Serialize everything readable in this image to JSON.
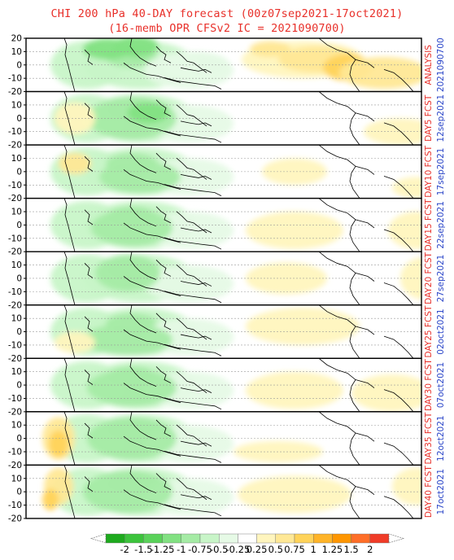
{
  "title": {
    "line1": "CHI 200 hPa 40-DAY forecast (00z07sep2021-17oct2021)",
    "line2": "(16-memb OPR CFSv2 IC = 2021090700)"
  },
  "colors": {
    "title": "#e8302a",
    "panel_label_red": "#e8302a",
    "panel_label_blue": "#2a45c8",
    "coast": "#000000",
    "grid": "#9a9a9a"
  },
  "chart_data": {
    "type": "heatmap",
    "variable": "CHI 200 hPa",
    "yaxis_ticks": [
      "20",
      "10",
      "0",
      "-10",
      "-20"
    ],
    "ylim": [
      -20,
      20
    ],
    "grid": "dashed horizontal at 10-degree intervals",
    "panels": [
      {
        "label_top": "ANALYSIS",
        "label_bottom": "2021090700"
      },
      {
        "label_top": "DAY5 FCST",
        "label_bottom": "12sep2021"
      },
      {
        "label_top": "DAY10 FCST",
        "label_bottom": "17sep2021"
      },
      {
        "label_top": "DAY15 FCST",
        "label_bottom": "22sep2021"
      },
      {
        "label_top": "DAY20 FCST",
        "label_bottom": "27sep2021"
      },
      {
        "label_top": "DAY25 FCST",
        "label_bottom": "02oct2021"
      },
      {
        "label_top": "DAY30 FCST",
        "label_bottom": "07oct2021"
      },
      {
        "label_top": "DAY35 FCST",
        "label_bottom": "12oct2021"
      },
      {
        "label_top": "DAY40 FCST",
        "label_bottom": "17oct2021"
      }
    ],
    "colorbar": {
      "labels": [
        "-2",
        "-1.5",
        "-1.25",
        "-1",
        "-0.75",
        "-0.5",
        "-0.25",
        "0.25",
        "0.5",
        "0.75",
        "1",
        "1.25",
        "1.5",
        "2"
      ],
      "colors": [
        "#1eaa1e",
        "#3cc33c",
        "#5ad25a",
        "#82e182",
        "#a5eba5",
        "#c8f5c8",
        "#e6fae6",
        "#ffffff",
        "#fff5be",
        "#ffe896",
        "#ffd35a",
        "#ffb428",
        "#ff9600",
        "#ff6e28",
        "#f03c28"
      ]
    }
  }
}
